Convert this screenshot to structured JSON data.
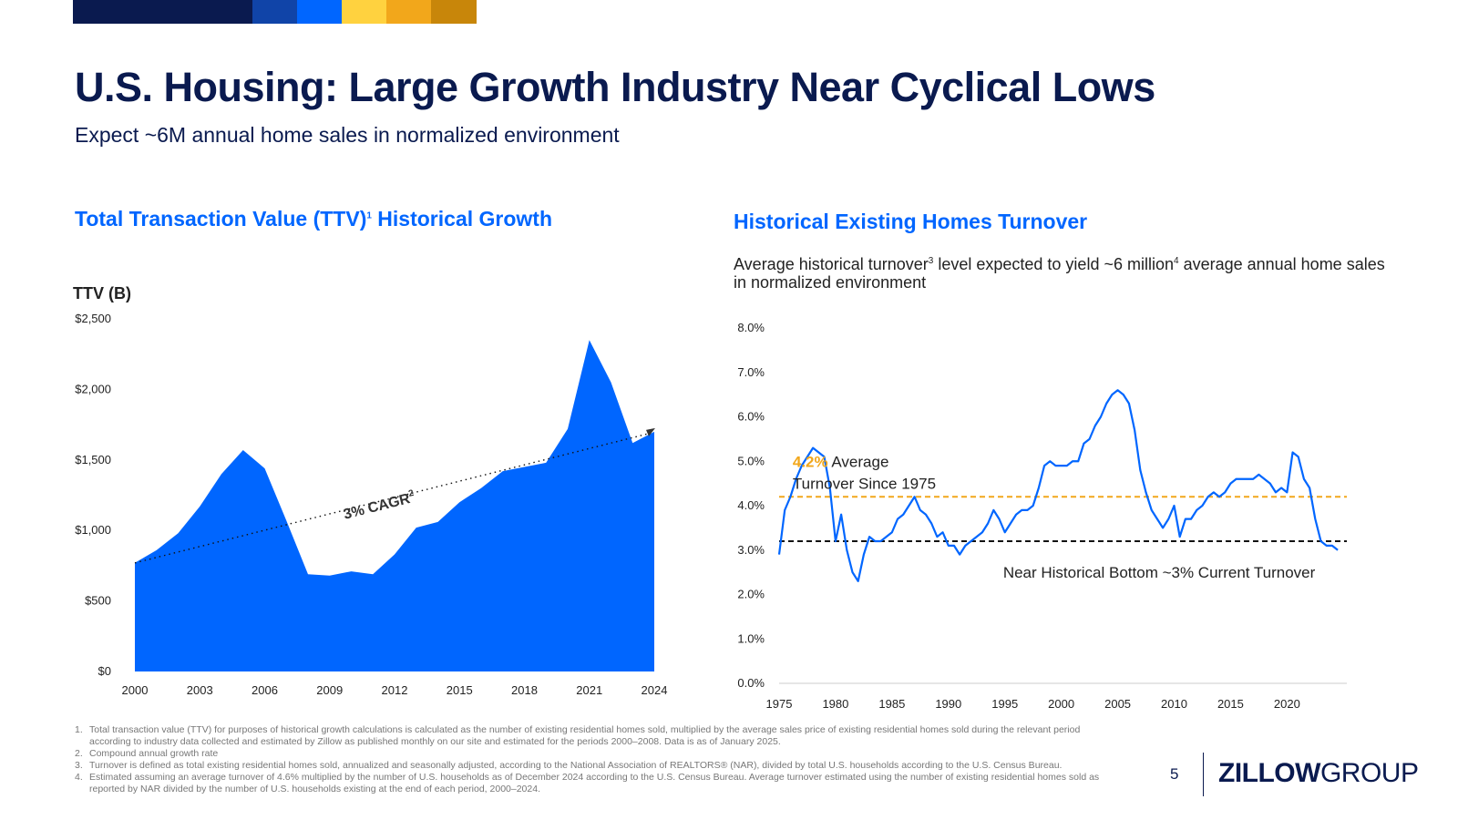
{
  "brand_colors": [
    "#0a1a4f",
    "#1044a8",
    "#0066ff",
    "#ffd23f",
    "#f2a71b",
    "#c8860a"
  ],
  "header": {
    "title": "U.S. Housing: Large Growth Industry Near Cyclical Lows",
    "subtitle": "Expect ~6M annual home sales in normalized environment"
  },
  "left_section": {
    "title": "Total Transaction Value (TTV)",
    "title_sup": "1",
    "title_rest": " Historical Growth",
    "y_axis_title": "TTV (B)",
    "cagr_label": "3% CAGR",
    "cagr_sup": "2"
  },
  "right_section": {
    "title": "Historical Existing Homes Turnover",
    "desc_a": "Average historical turnover",
    "desc_sup1": "3",
    "desc_b": " level expected to yield ~6 million",
    "desc_sup2": "4",
    "desc_c": " average annual home sales in normalized environment",
    "avg_value": "4.2%",
    "avg_label_1": " Average",
    "avg_label_2": "Turnover Since 1975",
    "bottom_label": "Near Historical Bottom ~3% Current Turnover"
  },
  "chart_data": [
    {
      "type": "area",
      "title": "Total Transaction Value (TTV) Historical Growth",
      "ylabel": "TTV (B)",
      "ylim": [
        0,
        2500
      ],
      "y_ticks": [
        "$0",
        "$500",
        "$1,000",
        "$1,500",
        "$2,000",
        "$2,500"
      ],
      "x_ticks": [
        "2000",
        "2003",
        "2006",
        "2009",
        "2012",
        "2015",
        "2018",
        "2021",
        "2024"
      ],
      "x": [
        2000,
        2001,
        2002,
        2003,
        2004,
        2005,
        2006,
        2007,
        2008,
        2009,
        2010,
        2011,
        2012,
        2013,
        2014,
        2015,
        2016,
        2017,
        2018,
        2019,
        2020,
        2021,
        2022,
        2023,
        2024
      ],
      "values": [
        770,
        860,
        980,
        1170,
        1400,
        1570,
        1440,
        1070,
        690,
        680,
        710,
        690,
        830,
        1020,
        1060,
        1200,
        1300,
        1420,
        1450,
        1480,
        1720,
        2350,
        2050,
        1620,
        1700
      ],
      "trendline": {
        "label": "3% CAGR",
        "start": [
          2000,
          770
        ],
        "end": [
          2024,
          1700
        ]
      }
    },
    {
      "type": "line",
      "title": "Historical Existing Homes Turnover",
      "ylim": [
        0,
        8
      ],
      "y_ticks": [
        "0.0%",
        "1.0%",
        "2.0%",
        "3.0%",
        "4.0%",
        "5.0%",
        "6.0%",
        "7.0%",
        "8.0%"
      ],
      "x_ticks": [
        "1975",
        "1980",
        "1985",
        "1990",
        "1995",
        "2000",
        "2005",
        "2010",
        "2015",
        "2020"
      ],
      "x": [
        1975,
        1975.5,
        1976,
        1976.5,
        1977,
        1977.5,
        1978,
        1978.5,
        1979,
        1979.5,
        1980,
        1980.5,
        1981,
        1981.5,
        1982,
        1982.5,
        1983,
        1983.5,
        1984,
        1984.5,
        1985,
        1985.5,
        1986,
        1986.5,
        1987,
        1987.5,
        1988,
        1988.5,
        1989,
        1989.5,
        1990,
        1990.5,
        1991,
        1991.5,
        1992,
        1992.5,
        1993,
        1993.5,
        1994,
        1994.5,
        1995,
        1995.5,
        1996,
        1996.5,
        1997,
        1997.5,
        1998,
        1998.5,
        1999,
        1999.5,
        2000,
        2000.5,
        2001,
        2001.5,
        2002,
        2002.5,
        2003,
        2003.5,
        2004,
        2004.5,
        2005,
        2005.5,
        2006,
        2006.5,
        2007,
        2007.5,
        2008,
        2008.5,
        2009,
        2009.5,
        2010,
        2010.5,
        2011,
        2011.5,
        2012,
        2012.5,
        2013,
        2013.5,
        2014,
        2014.5,
        2015,
        2015.5,
        2016,
        2016.5,
        2017,
        2017.5,
        2018,
        2018.5,
        2019,
        2019.5,
        2020,
        2020.5,
        2021,
        2021.5,
        2022,
        2022.5,
        2023,
        2023.5,
        2024,
        2024.5
      ],
      "values": [
        2.9,
        3.9,
        4.2,
        4.6,
        4.9,
        5.1,
        5.3,
        5.2,
        5.1,
        4.4,
        3.2,
        3.8,
        3.0,
        2.5,
        2.3,
        2.9,
        3.3,
        3.2,
        3.2,
        3.3,
        3.4,
        3.7,
        3.8,
        4.0,
        4.2,
        3.9,
        3.8,
        3.6,
        3.3,
        3.4,
        3.1,
        3.1,
        2.9,
        3.1,
        3.2,
        3.3,
        3.4,
        3.6,
        3.9,
        3.7,
        3.4,
        3.6,
        3.8,
        3.9,
        3.9,
        4.0,
        4.4,
        4.9,
        5.0,
        4.9,
        4.9,
        4.9,
        5.0,
        5.0,
        5.4,
        5.5,
        5.8,
        6.0,
        6.3,
        6.5,
        6.6,
        6.5,
        6.3,
        5.7,
        4.8,
        4.3,
        3.9,
        3.7,
        3.5,
        3.7,
        4.0,
        3.3,
        3.7,
        3.7,
        3.9,
        4.0,
        4.2,
        4.3,
        4.2,
        4.3,
        4.5,
        4.6,
        4.6,
        4.6,
        4.6,
        4.7,
        4.6,
        4.5,
        4.3,
        4.4,
        4.3,
        5.2,
        5.1,
        4.6,
        4.4,
        3.7,
        3.2,
        3.1,
        3.1,
        3.0
      ],
      "reference_lines": [
        {
          "label": "4.2% Average Turnover Since 1975",
          "value": 4.2,
          "color": "#f2a71b"
        },
        {
          "label": "Near Historical Bottom ~3% Current Turnover",
          "value": 3.2,
          "color": "#111111"
        }
      ]
    }
  ],
  "footnotes": [
    {
      "n": "1.",
      "text": "Total transaction value (TTV) for purposes of historical growth calculations is calculated as the number of existing residential homes sold, multiplied by the average sales price of existing residential homes sold during the relevant period according to industry data collected and estimated by Zillow as published monthly on our site and estimated for the periods 2000–2008. Data is as of January 2025."
    },
    {
      "n": "2.",
      "text": "Compound annual growth rate"
    },
    {
      "n": "3.",
      "text": "Turnover is defined as total existing residential homes sold, annualized and seasonally adjusted,  according to the National Association of REALTORS® (NAR), divided by total U.S. households according to the U.S. Census Bureau."
    },
    {
      "n": "4.",
      "text": "Estimated assuming an average turnover of 4.6% multiplied by the number of U.S. households as of December 2024 according to the U.S. Census Bureau. Average turnover estimated using the number of existing residential homes sold as reported by NAR divided by the number of U.S. households existing at the end of each period, 2000–2024."
    }
  ],
  "footer": {
    "page_number": "5",
    "logo_bold": "ZILLOW",
    "logo_regular": "GROUP"
  }
}
